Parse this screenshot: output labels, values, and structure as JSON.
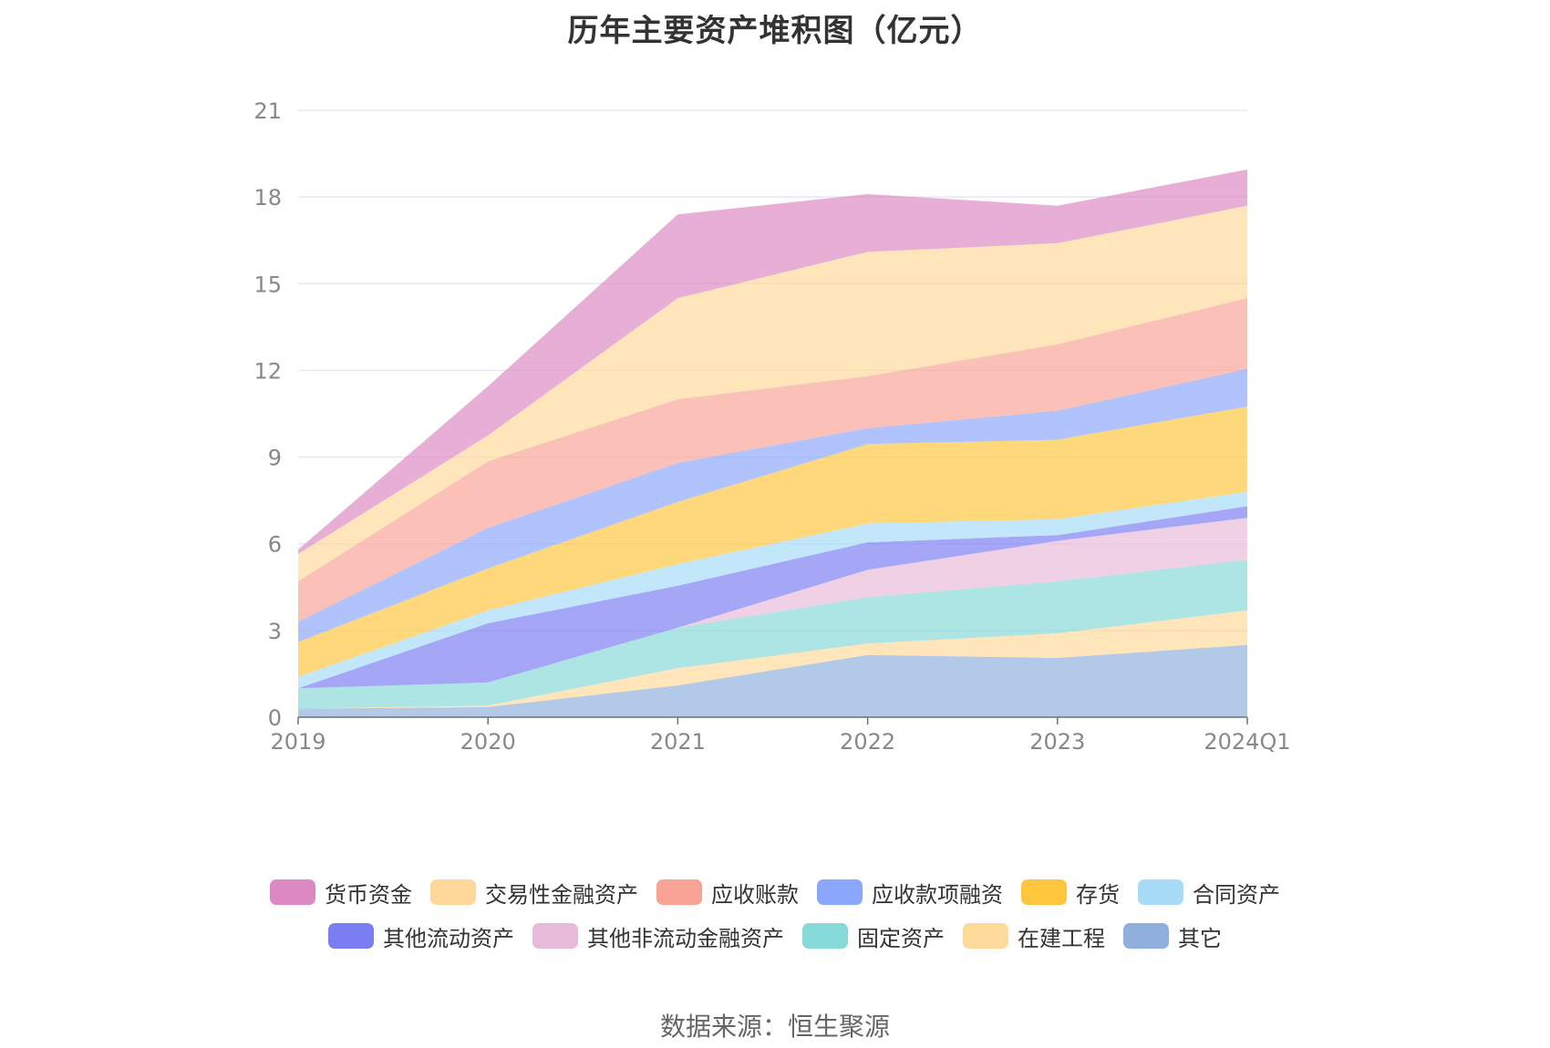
{
  "chart_data": {
    "type": "area",
    "stacked": true,
    "title": "历年主要资产堆积图（亿元）",
    "x": [
      "2019",
      "2020",
      "2021",
      "2022",
      "2023",
      "2024Q1"
    ],
    "ylim": [
      0,
      21
    ],
    "yticks": [
      0,
      3,
      6,
      9,
      12,
      15,
      18,
      21
    ],
    "grid": true,
    "legend_position": "bottom",
    "series": [
      {
        "name": "其它",
        "color": "#8fb0dd",
        "values": [
          0.3,
          0.35,
          1.1,
          2.15,
          2.05,
          2.5
        ]
      },
      {
        "name": "在建工程",
        "color": "#fdd99a",
        "values": [
          0.0,
          0.05,
          0.6,
          0.4,
          0.85,
          1.2
        ]
      },
      {
        "name": "固定资产",
        "color": "#86d9d9",
        "values": [
          0.7,
          0.8,
          1.4,
          1.6,
          1.8,
          1.75
        ]
      },
      {
        "name": "其他非流动金融资产",
        "color": "#e8bad9",
        "values": [
          0.0,
          0.0,
          0.0,
          0.95,
          1.4,
          1.45
        ]
      },
      {
        "name": "其他流动资产",
        "color": "#7b7df2",
        "values": [
          0.0,
          2.05,
          1.45,
          0.95,
          0.2,
          0.4
        ]
      },
      {
        "name": "合同资产",
        "color": "#a6dcf7",
        "values": [
          0.4,
          0.45,
          0.75,
          0.65,
          0.55,
          0.5
        ]
      },
      {
        "name": "存货",
        "color": "#ffc63d",
        "values": [
          1.2,
          1.45,
          2.15,
          2.75,
          2.75,
          2.95
        ]
      },
      {
        "name": "应收款项融资",
        "color": "#8aa7fb",
        "values": [
          0.7,
          1.4,
          1.35,
          0.55,
          1.0,
          1.3
        ]
      },
      {
        "name": "应收账款",
        "color": "#f9a296",
        "values": [
          1.4,
          2.3,
          2.2,
          1.8,
          2.3,
          2.45
        ]
      },
      {
        "name": "交易性金融资产",
        "color": "#fed89a",
        "values": [
          0.95,
          0.9,
          3.5,
          4.3,
          3.5,
          3.2
        ]
      },
      {
        "name": "货币资金",
        "color": "#db88c3",
        "values": [
          0.15,
          1.7,
          2.9,
          2.0,
          1.3,
          1.25
        ]
      }
    ]
  },
  "legend_rows": [
    [
      {
        "name": "货币资金",
        "color": "#db88c3"
      },
      {
        "name": "交易性金融资产",
        "color": "#fed89a"
      },
      {
        "name": "应收账款",
        "color": "#f9a296"
      },
      {
        "name": "应收款项融资",
        "color": "#8aa7fb"
      },
      {
        "name": "存货",
        "color": "#ffc63d"
      },
      {
        "name": "合同资产",
        "color": "#a6dcf7"
      }
    ],
    [
      {
        "name": "其他流动资产",
        "color": "#7b7df2"
      },
      {
        "name": "其他非流动金融资产",
        "color": "#e8bad9"
      },
      {
        "name": "固定资产",
        "color": "#86d9d9"
      },
      {
        "name": "在建工程",
        "color": "#fdd99a"
      },
      {
        "name": "其它",
        "color": "#8fb0dd"
      }
    ]
  ],
  "source": "数据来源：恒生聚源"
}
